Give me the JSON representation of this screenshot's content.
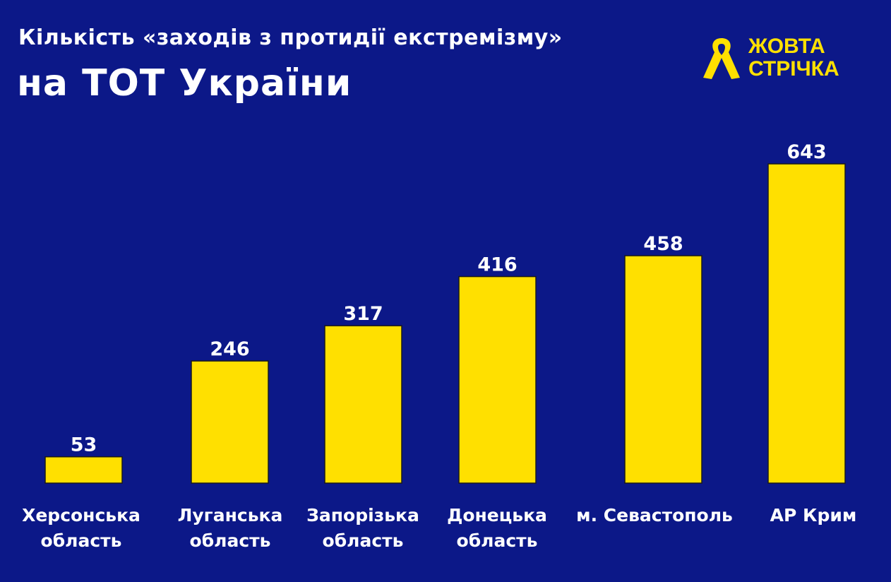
{
  "brand": {
    "line1": "ЖОВТА",
    "line2": "СТРІЧКА",
    "color": "#ffe000"
  },
  "chart_data": {
    "type": "bar",
    "title": "Кількість  «заходів з протидії екстремізму»",
    "subtitle": "на ТОТ України",
    "categories": [
      [
        "Херсонська",
        "область"
      ],
      [
        "Луганська",
        "область"
      ],
      [
        "Запорізька",
        "область"
      ],
      [
        "Донецька",
        "область"
      ],
      [
        "м. Севастополь"
      ],
      [
        "АР Крим"
      ]
    ],
    "values": [
      53,
      246,
      317,
      416,
      458,
      643
    ],
    "xlabel": "",
    "ylabel": "",
    "ylim": [
      0,
      643
    ],
    "grid": false,
    "bar_color": "#ffe000",
    "background": "#0c1888"
  }
}
